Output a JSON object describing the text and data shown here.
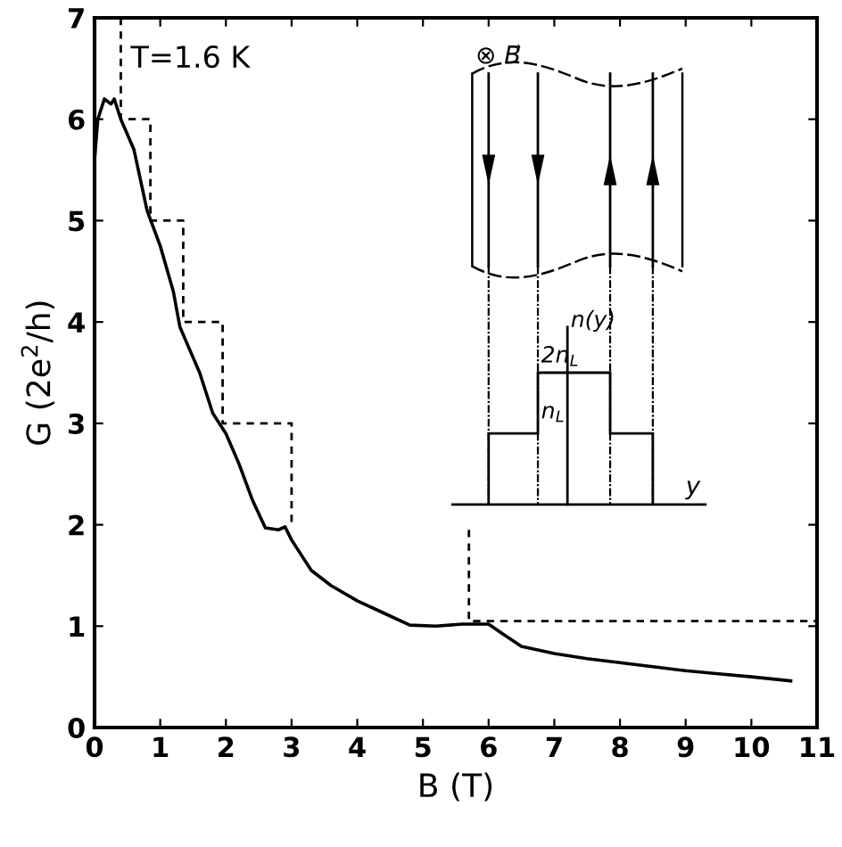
{
  "chart_data": {
    "type": "line",
    "xlabel": "B (T)",
    "ylabel": "G (2e$^{2}$/h)",
    "xlim": [
      0,
      11
    ],
    "ylim": [
      0,
      7
    ],
    "xticks": [
      0,
      1,
      2,
      3,
      4,
      5,
      6,
      7,
      8,
      9,
      10,
      11
    ],
    "yticks": [
      0,
      1,
      2,
      3,
      4,
      5,
      6,
      7
    ],
    "grid": false,
    "legend": false,
    "annotations": [
      "T=1.6 K",
      "⊗ B⃗",
      "n(y)",
      "2n$_{L}$",
      "n$_{L}$",
      "y"
    ],
    "series": [
      {
        "color": "#000000",
        "line_style": "solid",
        "x": [
          0,
          0.05,
          0.15,
          0.25,
          0.3,
          0.4,
          0.6,
          0.8,
          1.0,
          1.2,
          1.3,
          1.4,
          1.6,
          1.8,
          2.0,
          2.2,
          2.4,
          2.6,
          2.8,
          2.9,
          3.0,
          3.3,
          3.6,
          4.0,
          4.4,
          4.8,
          5.2,
          5.6,
          6.0,
          6.2,
          6.5,
          7.0,
          7.5,
          8.0,
          8.5,
          9.0,
          9.5,
          10.0,
          10.6
        ],
        "values": [
          5.6,
          6.0,
          6.2,
          6.15,
          6.2,
          6.0,
          5.7,
          5.1,
          4.75,
          4.3,
          3.95,
          3.8,
          3.5,
          3.1,
          2.9,
          2.6,
          2.25,
          1.97,
          1.95,
          1.98,
          1.85,
          1.55,
          1.4,
          1.25,
          1.13,
          1.01,
          1.0,
          1.02,
          1.02,
          0.93,
          0.8,
          0.73,
          0.68,
          0.64,
          0.6,
          0.56,
          0.53,
          0.5,
          0.46
        ]
      },
      {
        "color": "#000000",
        "line_style": "dashed",
        "x": [
          0.4,
          0.4,
          0.85,
          0.85,
          1.35,
          1.35,
          1.95,
          1.95,
          3.0,
          3.0
        ],
        "values": [
          7,
          6,
          6,
          5,
          5,
          4,
          4,
          3,
          3,
          2
        ]
      },
      {
        "color": "#000000",
        "line_style": "dashed",
        "x": [
          5.7,
          5.7,
          11
        ],
        "values": [
          1.95,
          1.05,
          1.05
        ]
      }
    ]
  }
}
